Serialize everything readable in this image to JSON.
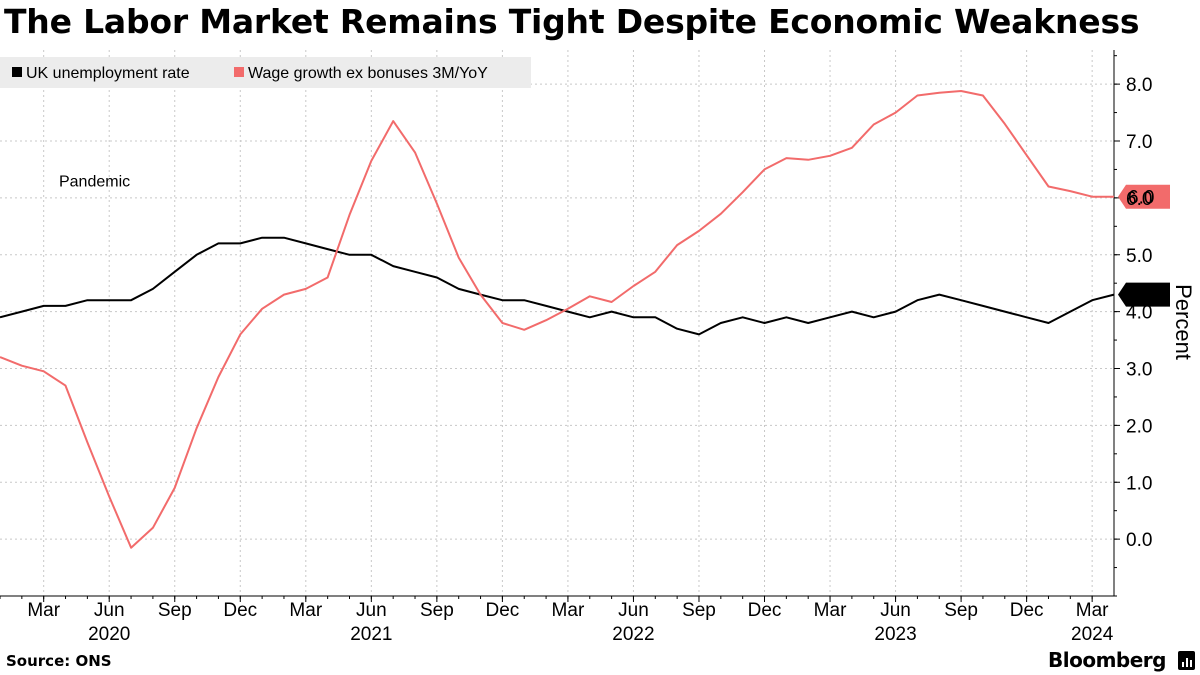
{
  "title": "The Labor Market Remains Tight Despite Economic Weakness",
  "source": "Source: ONS",
  "brand": "Bloomberg",
  "colors": {
    "unemployment": "#000000",
    "wage": "#f26b6b",
    "grid": "#c8c8c8",
    "legend_bg": "#ececec"
  },
  "chart_data": {
    "type": "line",
    "title": "The Labor Market Remains Tight Despite Economic Weakness",
    "xlabel": "",
    "ylabel": "Percent",
    "ylim": [
      -1.0,
      8.6
    ],
    "yticks": [
      0.0,
      1.0,
      2.0,
      3.0,
      4.0,
      5.0,
      6.0,
      7.0,
      8.0
    ],
    "ytick_labels": [
      "0.0",
      "1.0",
      "2.0",
      "3.0",
      "4.0",
      "5.0",
      "6.0",
      "7.0",
      "8.0"
    ],
    "x_range_index": [
      -2,
      49
    ],
    "x_start": "2020-01",
    "month_ticks": [
      {
        "label": "Mar",
        "index": 0
      },
      {
        "label": "Jun",
        "index": 3
      },
      {
        "label": "Sep",
        "index": 6
      },
      {
        "label": "Dec",
        "index": 9
      },
      {
        "label": "Mar",
        "index": 12
      },
      {
        "label": "Jun",
        "index": 15
      },
      {
        "label": "Sep",
        "index": 18
      },
      {
        "label": "Dec",
        "index": 21
      },
      {
        "label": "Mar",
        "index": 24
      },
      {
        "label": "Jun",
        "index": 27
      },
      {
        "label": "Sep",
        "index": 30
      },
      {
        "label": "Dec",
        "index": 33
      },
      {
        "label": "Mar",
        "index": 36
      },
      {
        "label": "Jun",
        "index": 39
      },
      {
        "label": "Sep",
        "index": 42
      },
      {
        "label": "Dec",
        "index": 45
      },
      {
        "label": "Mar",
        "index": 48
      }
    ],
    "year_ticks": [
      {
        "label": "2020",
        "index": 3
      },
      {
        "label": "2021",
        "index": 15
      },
      {
        "label": "2022",
        "index": 27
      },
      {
        "label": "2023",
        "index": 39
      },
      {
        "label": "2024",
        "index": 48
      }
    ],
    "legend_position": "top-left",
    "series": [
      {
        "name": "UK unemployment rate",
        "color": "#000000",
        "start_index": -2,
        "last_value_label": "4.3",
        "values": [
          3.9,
          4.0,
          4.1,
          4.1,
          4.2,
          4.2,
          4.2,
          4.4,
          4.7,
          5.0,
          5.2,
          5.2,
          5.3,
          5.3,
          5.2,
          5.1,
          5.0,
          5.0,
          4.8,
          4.7,
          4.6,
          4.4,
          4.3,
          4.2,
          4.2,
          4.1,
          4.0,
          3.9,
          4.0,
          3.9,
          3.9,
          3.7,
          3.6,
          3.8,
          3.9,
          3.8,
          3.9,
          3.8,
          3.9,
          4.0,
          3.9,
          4.0,
          4.2,
          4.3,
          4.2,
          4.1,
          4.0,
          3.9,
          3.8,
          4.0,
          4.2,
          4.3
        ]
      },
      {
        "name": "Wage growth ex bonuses 3M/YoY",
        "color": "#f26b6b",
        "start_index": -2,
        "last_value_label": "6.0",
        "values": [
          3.2,
          3.05,
          2.95,
          2.7,
          1.7,
          0.75,
          -0.15,
          0.2,
          0.9,
          1.95,
          2.85,
          3.6,
          4.05,
          4.3,
          4.4,
          4.6,
          5.7,
          6.65,
          7.35,
          6.8,
          5.9,
          4.95,
          4.3,
          3.8,
          3.68,
          3.85,
          4.05,
          4.27,
          4.17,
          4.45,
          4.7,
          5.17,
          5.42,
          5.72,
          6.1,
          6.5,
          6.7,
          6.67,
          6.74,
          6.88,
          7.29,
          7.5,
          7.8,
          7.85,
          7.88,
          7.8,
          7.3,
          6.75,
          6.2,
          6.12,
          6.02,
          6.02
        ]
      }
    ],
    "annotations": [
      {
        "text": "Pandemic",
        "x_index": 0.7,
        "y": 6.2
      }
    ]
  }
}
